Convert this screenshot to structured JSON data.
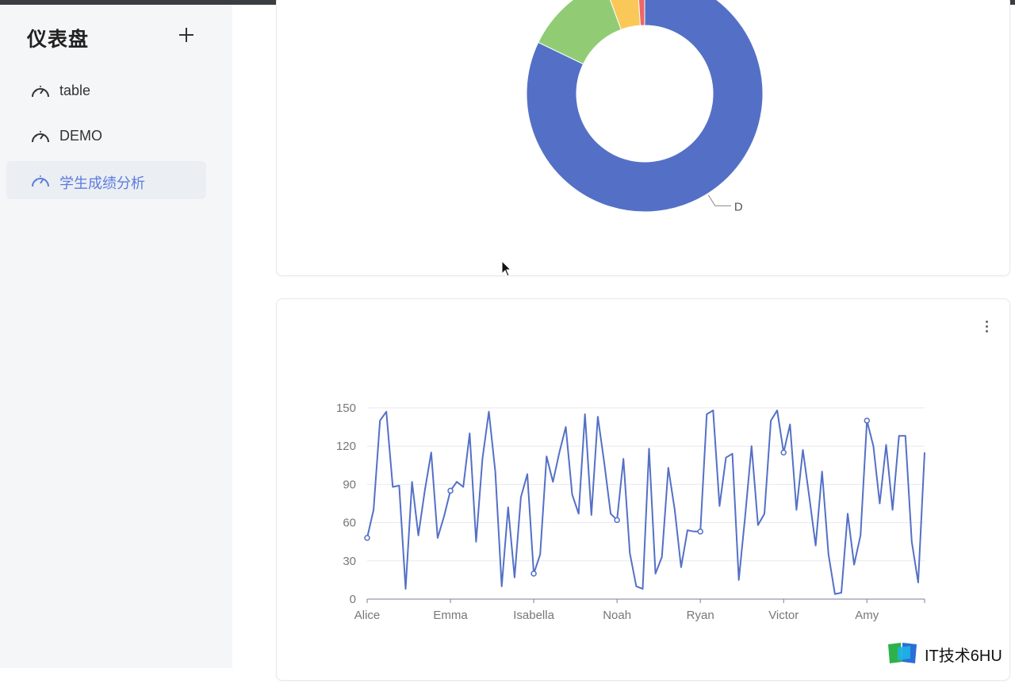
{
  "sidebar": {
    "title": "仪表盘",
    "add_icon": "plus-icon",
    "items": [
      {
        "label": "table",
        "icon": "dashboard-gauge-icon",
        "active": false
      },
      {
        "label": "DEMO",
        "icon": "dashboard-gauge-icon",
        "active": false
      },
      {
        "label": "学生成绩分析",
        "icon": "dashboard-gauge-icon",
        "active": true
      }
    ],
    "accent_color": "#5b7be0"
  },
  "pie_card": {
    "chart_data": {
      "type": "pie",
      "style": "donut",
      "slices": [
        {
          "name": "D",
          "value": 80.5,
          "color": "#5470c6"
        },
        {
          "name": "",
          "value": 12,
          "color": "#91cc75"
        },
        {
          "name": "",
          "value": 4.5,
          "color": "#fac858"
        },
        {
          "name": "",
          "value": 1,
          "color": "#ee6666"
        }
      ],
      "labels_visible": [
        "D"
      ]
    }
  },
  "line_card": {
    "more_icon": "more-vertical-icon",
    "chart_data": {
      "type": "line",
      "y_ticks": [
        "0",
        "30",
        "60",
        "90",
        "120",
        "150"
      ],
      "ylim": [
        0,
        150
      ],
      "x_tick_labels": [
        "Alice",
        "Emma",
        "Isabella",
        "Noah",
        "Ryan",
        "Victor",
        "Amy"
      ],
      "grid": true,
      "series_color": "#5470c6",
      "series": [
        {
          "values": [
            48,
            70,
            140,
            147,
            88,
            89,
            8,
            92,
            50,
            85,
            115,
            48,
            65,
            85,
            92,
            88,
            130,
            45,
            110,
            147,
            100,
            10,
            72,
            17,
            80,
            98,
            20,
            35,
            112,
            92,
            115,
            135,
            82,
            67,
            145,
            66,
            143,
            107,
            67,
            62,
            110,
            36,
            10,
            8,
            118,
            20,
            33,
            103,
            70,
            25,
            54,
            53,
            53,
            145,
            148,
            73,
            111,
            114,
            15,
            65,
            120,
            58,
            67,
            140,
            148,
            115,
            137,
            70,
            117,
            80,
            42,
            100,
            35,
            4,
            5,
            67,
            27,
            50,
            140,
            120,
            75,
            121,
            70,
            128,
            128,
            45,
            13,
            115
          ],
          "markers_at": [
            0,
            13,
            26,
            39,
            52,
            65,
            78
          ]
        }
      ]
    }
  },
  "watermark": {
    "text": "IT技术6HU",
    "icon": "book-logo-icon"
  }
}
